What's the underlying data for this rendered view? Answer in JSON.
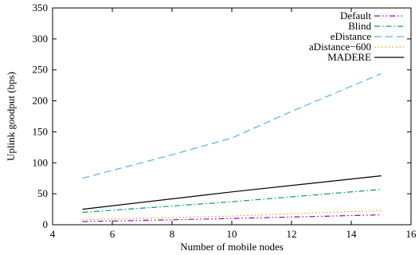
{
  "chart_data": {
    "type": "line",
    "title": "",
    "xlabel": "Number of mobile nodes",
    "ylabel": "Uplink goodput (bps)",
    "xlim": [
      4,
      16
    ],
    "ylim": [
      0,
      350
    ],
    "xticks": [
      4,
      6,
      8,
      10,
      12,
      14,
      16
    ],
    "yticks": [
      0,
      50,
      100,
      150,
      200,
      250,
      300,
      350
    ],
    "grid": false,
    "legend_position": "top-right",
    "series": [
      {
        "name": "Default",
        "color": "#9400d3",
        "dash": "dash-dot-dot",
        "x": [
          5,
          10,
          15
        ],
        "y": [
          5,
          10,
          16
        ]
      },
      {
        "name": "Blind",
        "color": "#009e73",
        "dash": "dash-dot",
        "x": [
          5,
          10,
          15
        ],
        "y": [
          20,
          37,
          57
        ]
      },
      {
        "name": "eDistance",
        "color": "#56b4e9",
        "dash": "dashed",
        "x": [
          5,
          8,
          10,
          12,
          15
        ],
        "y": [
          75,
          113,
          140,
          183,
          244
        ]
      },
      {
        "name": "aDistance−600",
        "color": "#e69f00",
        "dash": "dotted",
        "x": [
          5,
          10,
          15
        ],
        "y": [
          8,
          14,
          23
        ]
      },
      {
        "name": "MADERE",
        "color": "#000000",
        "dash": "solid",
        "x": [
          5,
          10,
          15
        ],
        "y": [
          25,
          53,
          79
        ]
      }
    ]
  }
}
